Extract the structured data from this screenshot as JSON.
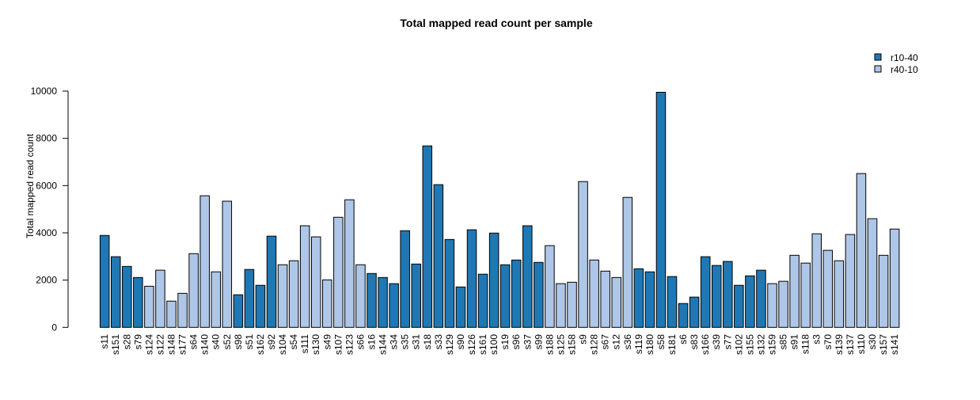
{
  "chart_data": {
    "type": "bar",
    "title": "Total mapped read count per sample",
    "xlabel": "",
    "ylabel": "Total mapped read count",
    "ylim": [
      0,
      10000
    ],
    "yticks": [
      0,
      2000,
      4000,
      6000,
      8000,
      10000
    ],
    "grid": false,
    "legend_placement": "top-right",
    "legend": [
      {
        "name": "r10-40",
        "color": "#1f78b4"
      },
      {
        "name": "r40-10",
        "color": "#aec7e8"
      }
    ],
    "categories": [
      "s11",
      "s151",
      "s28",
      "s79",
      "s124",
      "s122",
      "s148",
      "s177",
      "s64",
      "s140",
      "s40",
      "s52",
      "s98",
      "s51",
      "s162",
      "s92",
      "s104",
      "s54",
      "s111",
      "s130",
      "s49",
      "s107",
      "s123",
      "s66",
      "s16",
      "s144",
      "s34",
      "s35",
      "s31",
      "s18",
      "s33",
      "s129",
      "s90",
      "s126",
      "s161",
      "s100",
      "s19",
      "s96",
      "s37",
      "s99",
      "s188",
      "s125",
      "s158",
      "s9",
      "s128",
      "s67",
      "s12",
      "s36",
      "s119",
      "s180",
      "s58",
      "s181",
      "s6",
      "s83",
      "s166",
      "s39",
      "s77",
      "s102",
      "s155",
      "s132",
      "s159",
      "s85",
      "s91",
      "s118",
      "s3",
      "s70",
      "s139",
      "s137",
      "s110",
      "s30",
      "s157",
      "s141"
    ],
    "values": [
      3890,
      2990,
      2580,
      2110,
      1740,
      2420,
      1110,
      1440,
      3120,
      5570,
      2350,
      5340,
      1380,
      2450,
      1780,
      3860,
      2650,
      2820,
      4300,
      3830,
      2010,
      4660,
      5400,
      2650,
      2280,
      2110,
      1850,
      4090,
      2680,
      7680,
      6040,
      3720,
      1710,
      4130,
      2250,
      3990,
      2650,
      2850,
      4300,
      2750,
      3460,
      1850,
      1910,
      6170,
      2850,
      2380,
      2110,
      5500,
      2480,
      2350,
      9950,
      2150,
      1010,
      1280,
      2990,
      2620,
      2790,
      1780,
      2180,
      2420,
      1850,
      1950,
      3050,
      2720,
      3960,
      3260,
      2820,
      3930,
      6510,
      4600,
      3050,
      4160
    ],
    "groups": [
      "r10-40",
      "r10-40",
      "r10-40",
      "r10-40",
      "r40-10",
      "r40-10",
      "r40-10",
      "r40-10",
      "r40-10",
      "r40-10",
      "r40-10",
      "r40-10",
      "r10-40",
      "r10-40",
      "r10-40",
      "r10-40",
      "r40-10",
      "r40-10",
      "r40-10",
      "r40-10",
      "r40-10",
      "r40-10",
      "r40-10",
      "r40-10",
      "r10-40",
      "r10-40",
      "r10-40",
      "r10-40",
      "r10-40",
      "r10-40",
      "r10-40",
      "r10-40",
      "r10-40",
      "r10-40",
      "r10-40",
      "r10-40",
      "r10-40",
      "r10-40",
      "r10-40",
      "r10-40",
      "r40-10",
      "r40-10",
      "r40-10",
      "r40-10",
      "r40-10",
      "r40-10",
      "r40-10",
      "r40-10",
      "r10-40",
      "r10-40",
      "r10-40",
      "r10-40",
      "r10-40",
      "r10-40",
      "r10-40",
      "r10-40",
      "r10-40",
      "r10-40",
      "r10-40",
      "r10-40",
      "r40-10",
      "r40-10",
      "r40-10",
      "r40-10",
      "r40-10",
      "r40-10",
      "r40-10",
      "r40-10",
      "r40-10",
      "r40-10",
      "r40-10",
      "r40-10"
    ]
  }
}
